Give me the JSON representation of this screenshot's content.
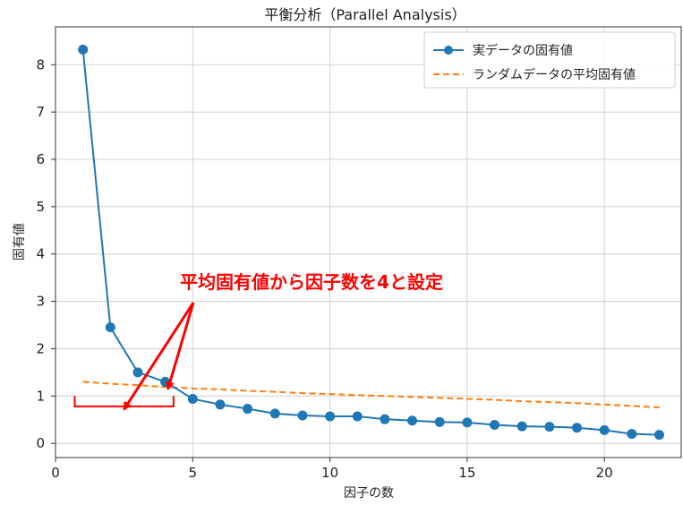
{
  "chart_data": {
    "type": "line",
    "title": "平衡分析（Parallel Analysis）",
    "xlabel": "因子の数",
    "ylabel": "固有値",
    "xlim": [
      0,
      22.8
    ],
    "ylim": [
      -0.3,
      8.8
    ],
    "xticks": [
      0,
      5,
      10,
      15,
      20
    ],
    "yticks": [
      0,
      1,
      2,
      3,
      4,
      5,
      6,
      7,
      8
    ],
    "grid": true,
    "legend_position": "top-right",
    "series": [
      {
        "name": "実データの固有値",
        "style": "line-markers",
        "color": "#1f77b4",
        "x": [
          1,
          2,
          3,
          4,
          5,
          6,
          7,
          8,
          9,
          10,
          11,
          12,
          13,
          14,
          15,
          16,
          17,
          18,
          19,
          20,
          21,
          22
        ],
        "y": [
          8.32,
          2.45,
          1.5,
          1.3,
          0.94,
          0.82,
          0.73,
          0.63,
          0.59,
          0.57,
          0.57,
          0.51,
          0.48,
          0.45,
          0.44,
          0.39,
          0.36,
          0.35,
          0.33,
          0.28,
          0.2,
          0.18
        ]
      },
      {
        "name": "ランダムデータの平均固有値",
        "style": "dashed",
        "color": "#ff7f0e",
        "x": [
          1,
          2,
          3,
          4,
          5,
          6,
          7,
          8,
          9,
          10,
          11,
          12,
          13,
          14,
          15,
          16,
          17,
          18,
          19,
          20,
          21,
          22
        ],
        "y": [
          1.3,
          1.26,
          1.23,
          1.19,
          1.16,
          1.14,
          1.11,
          1.09,
          1.06,
          1.04,
          1.02,
          1.0,
          0.98,
          0.96,
          0.94,
          0.92,
          0.89,
          0.87,
          0.85,
          0.82,
          0.79,
          0.76
        ]
      }
    ],
    "annotation": {
      "text": "平均固有値から因子数を4と設定",
      "color": "#ff0000"
    }
  }
}
